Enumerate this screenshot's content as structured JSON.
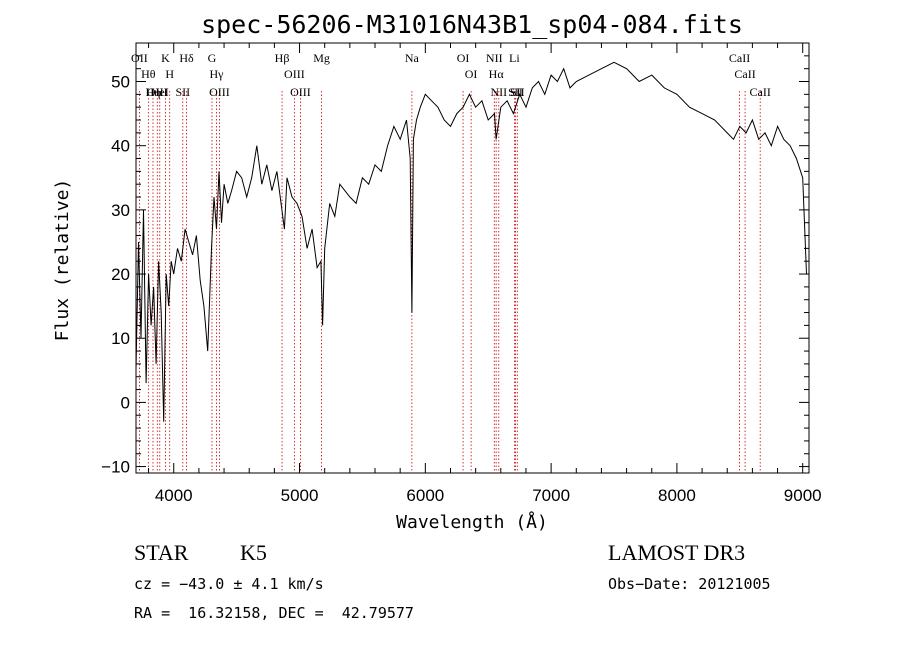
{
  "chart_data": {
    "type": "line",
    "title": "spec-56206-M31016N43B1_sp04-084.fits",
    "xlabel": "Wavelength (Å)",
    "ylabel": "Flux (relative)",
    "xlim": [
      3700,
      9050
    ],
    "ylim": [
      -11,
      56
    ],
    "xticks": [
      4000,
      5000,
      6000,
      7000,
      8000,
      9000
    ],
    "xtick_labels": [
      "4000",
      "5000",
      "6000",
      "7000",
      "8000",
      "9000"
    ],
    "yticks": [
      -10,
      0,
      10,
      20,
      30,
      40,
      50
    ],
    "ytick_labels": [
      "−10",
      "0",
      "10",
      "20",
      "30",
      "40",
      "50"
    ],
    "series": [
      {
        "name": "spectrum",
        "x": [
          3700,
          3720,
          3740,
          3760,
          3780,
          3800,
          3820,
          3840,
          3860,
          3880,
          3900,
          3920,
          3940,
          3960,
          3980,
          4000,
          4030,
          4060,
          4090,
          4120,
          4150,
          4180,
          4210,
          4240,
          4270,
          4300,
          4320,
          4340,
          4360,
          4380,
          4400,
          4430,
          4460,
          4500,
          4540,
          4580,
          4620,
          4660,
          4700,
          4740,
          4780,
          4820,
          4860,
          4880,
          4900,
          4940,
          4980,
          5020,
          5060,
          5100,
          5140,
          5170,
          5183,
          5200,
          5240,
          5280,
          5320,
          5360,
          5400,
          5450,
          5500,
          5550,
          5600,
          5650,
          5700,
          5750,
          5800,
          5850,
          5880,
          5893,
          5905,
          5930,
          5960,
          6000,
          6050,
          6100,
          6150,
          6200,
          6250,
          6300,
          6350,
          6400,
          6450,
          6500,
          6550,
          6563,
          6600,
          6650,
          6700,
          6750,
          6800,
          6850,
          6900,
          6950,
          7000,
          7050,
          7100,
          7150,
          7200,
          7300,
          7400,
          7500,
          7600,
          7700,
          7800,
          7900,
          8000,
          8100,
          8200,
          8300,
          8400,
          8450,
          8500,
          8550,
          8600,
          8650,
          8700,
          8750,
          8800,
          8850,
          8900,
          8950,
          9000,
          9030
        ],
        "y": [
          5,
          25,
          10,
          30,
          3,
          20,
          12,
          18,
          6,
          22,
          14,
          -3,
          20,
          15,
          22,
          20,
          24,
          22,
          27,
          25,
          23,
          26,
          19,
          15,
          8,
          24,
          32,
          27,
          36,
          28,
          34,
          31,
          33,
          36,
          35,
          32,
          35,
          40,
          34,
          37,
          33,
          36,
          30,
          27,
          35,
          32,
          31,
          29,
          24,
          27,
          21,
          22,
          12,
          24,
          31,
          29,
          34,
          33,
          32,
          31,
          35,
          34,
          37,
          36,
          40,
          43,
          41,
          44,
          38,
          14,
          41,
          44,
          46,
          48,
          47,
          46,
          44,
          43,
          45,
          46,
          48,
          46,
          47,
          44,
          45,
          41,
          46,
          47,
          45,
          48,
          46,
          49,
          50,
          48,
          51,
          50,
          52,
          49,
          50,
          51,
          52,
          53,
          52,
          50,
          51,
          49,
          48,
          46,
          45,
          44,
          42,
          41,
          43,
          42,
          44,
          41,
          42,
          40,
          43,
          41,
          40,
          38,
          35,
          20
        ]
      }
    ],
    "annotations": {
      "lines": [
        {
          "name": "Hθ",
          "wavelength": 3798
        },
        {
          "name": "OII",
          "wavelength": 3727
        },
        {
          "name": "OIII",
          "wavelength": 3869
        },
        {
          "name": "K",
          "wavelength": 3934
        },
        {
          "name": "HeI",
          "wavelength": 3889
        },
        {
          "name": "Hη",
          "wavelength": 3835
        },
        {
          "name": "H",
          "wavelength": 3968
        },
        {
          "name": "Hδ",
          "wavelength": 4102
        },
        {
          "name": "SII",
          "wavelength": 4072
        },
        {
          "name": "OIII",
          "wavelength": 4363
        },
        {
          "name": "Hγ",
          "wavelength": 4340
        },
        {
          "name": "G",
          "wavelength": 4304
        },
        {
          "name": "Hβ",
          "wavelength": 4861
        },
        {
          "name": "OIII",
          "wavelength": 4959
        },
        {
          "name": "OIII",
          "wavelength": 5007
        },
        {
          "name": "Mg",
          "wavelength": 5175
        },
        {
          "name": "Na",
          "wavelength": 5893
        },
        {
          "name": "OI",
          "wavelength": 6300
        },
        {
          "name": "OI",
          "wavelength": 6364
        },
        {
          "name": "Hα",
          "wavelength": 6563
        },
        {
          "name": "NII",
          "wavelength": 6548
        },
        {
          "name": "NII",
          "wavelength": 6584
        },
        {
          "name": "SII",
          "wavelength": 6717
        },
        {
          "name": "Li",
          "wavelength": 6708
        },
        {
          "name": "SII",
          "wavelength": 6731
        },
        {
          "name": "CaII",
          "wavelength": 8542
        },
        {
          "name": "CaII",
          "wavelength": 8498
        },
        {
          "name": "CaII",
          "wavelength": 8662
        }
      ]
    }
  },
  "colors": {
    "line": "#000000",
    "marker": "#cc0000",
    "axis": "#000000"
  },
  "info": {
    "class": "STAR",
    "subclass": "K5",
    "survey": "LAMOST DR3",
    "cz": "cz = −43.0 ± 4.1 km/s",
    "obs_date": "Obs−Date: 20121005",
    "radec": "RA =  16.32158, DEC =  42.79577"
  }
}
